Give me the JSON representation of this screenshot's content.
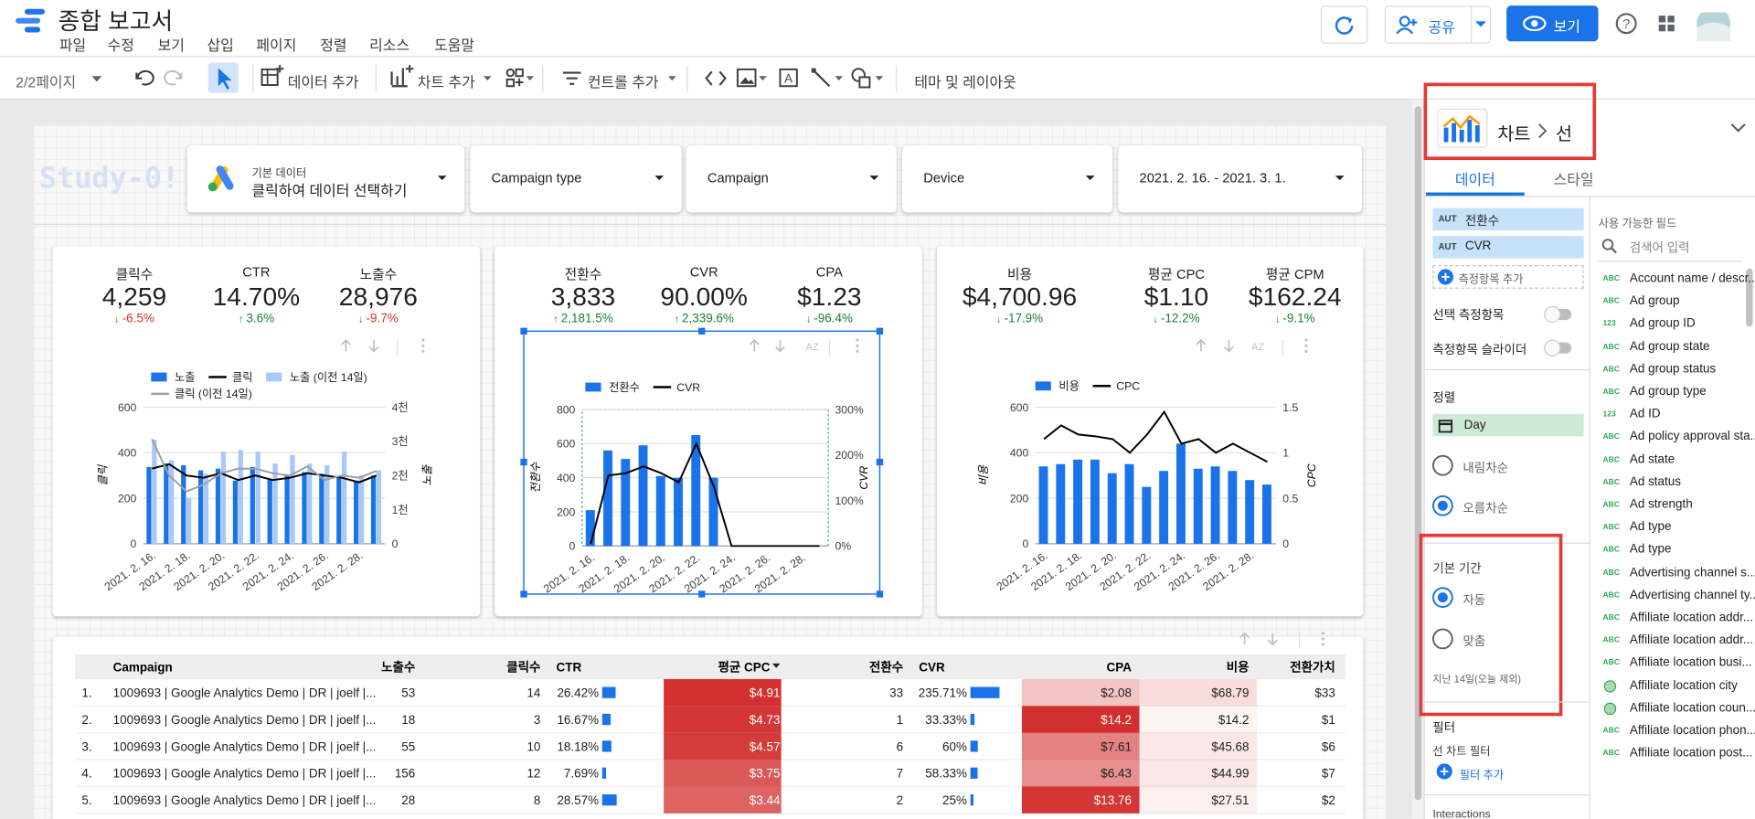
{
  "header": {
    "title": "종합 보고서",
    "menu": [
      "파일",
      "수정",
      "보기",
      "삽입",
      "페이지",
      "정렬",
      "리소스",
      "도움말"
    ],
    "share": "공유",
    "view": "보기"
  },
  "toolbar": {
    "page": "2/2페이지",
    "add_data": "데이터 추가",
    "add_chart": "차트 추가",
    "add_control": "컨트롤 추가",
    "theme": "테마 및 레이아웃"
  },
  "watermark": "Study-0!",
  "filters": {
    "source_label": "기본 데이터",
    "source": "클릭하여 데이터 선택하기",
    "controls": [
      "Campaign type",
      "Campaign",
      "Device",
      "2021. 2. 16. - 2021. 3. 1."
    ]
  },
  "scorecards": [
    [
      {
        "label": "클릭수",
        "value": "4,259",
        "change": "-6.5%",
        "color": "#d93025"
      },
      {
        "label": "CTR",
        "value": "14.70%",
        "change": "3.6%",
        "color": "#188038"
      },
      {
        "label": "노출수",
        "value": "28,976",
        "change": "-9.7%",
        "color": "#d93025"
      }
    ],
    [
      {
        "label": "전환수",
        "value": "3,833",
        "change": "2,181.5%",
        "color": "#188038"
      },
      {
        "label": "CVR",
        "value": "90.00%",
        "change": "2,339.6%",
        "color": "#188038"
      },
      {
        "label": "CPA",
        "value": "$1.23",
        "change": "-96.4%",
        "color": "#188038"
      }
    ],
    [
      {
        "label": "비용",
        "value": "$4,700.96",
        "change": "-17.9%",
        "color": "#188038"
      },
      {
        "label": "평균 CPC",
        "value": "$1.10",
        "change": "-12.2%",
        "color": "#188038"
      },
      {
        "label": "평균 CPM",
        "value": "$162.24",
        "change": "-9.1%",
        "color": "#188038"
      }
    ]
  ],
  "chart_data": [
    {
      "type": "combo",
      "categories": [
        "2021. 2. 16.",
        null,
        "2021. 2. 18.",
        null,
        "2021. 2. 20.",
        null,
        "2021. 2. 22.",
        null,
        "2021. 2. 24.",
        null,
        "2021. 2. 26.",
        null,
        "2021. 2. 28.",
        null
      ],
      "ylabel": "클릭",
      "y2label": "노출",
      "ylim": [
        0,
        600
      ],
      "yticks": [
        0,
        200,
        400,
        600
      ],
      "y2lim": [
        0,
        4000
      ],
      "y2ticks": [
        0,
        {
          "value": 1000,
          "label": "1천"
        },
        {
          "value": 2000,
          "label": "2천"
        },
        {
          "value": 3000,
          "label": "3천"
        },
        {
          "value": 4000,
          "label": "4천"
        }
      ],
      "grid": true,
      "series": [
        {
          "name": "노출",
          "type": "bar",
          "axis": "y2",
          "color": "#1a73e8",
          "values": [
            2250,
            2350,
            2300,
            2150,
            2200,
            1850,
            2250,
            1900,
            2000,
            2100,
            2050,
            1950,
            1850,
            2000
          ]
        },
        {
          "name": "클릭",
          "type": "line",
          "color": "#000000",
          "values": [
            330,
            350,
            300,
            290,
            310,
            280,
            300,
            280,
            290,
            310,
            300,
            290,
            270,
            300
          ]
        },
        {
          "name": "노출 (이전 14일)",
          "type": "bar",
          "axis": "y2",
          "color": "#a8c7fa",
          "values": [
            3050,
            2450,
            1350,
            2050,
            2700,
            2750,
            2700,
            2350,
            2600,
            2350,
            2300,
            2700,
            2000,
            2150
          ]
        },
        {
          "name": "클릭 (이전 14일)",
          "type": "line",
          "color": "#9e9e9e",
          "values": [
            460,
            300,
            230,
            260,
            310,
            330,
            330,
            310,
            300,
            340,
            280,
            300,
            290,
            320
          ]
        }
      ]
    },
    {
      "type": "combo",
      "categories": [
        "2021. 2. 16.",
        null,
        "2021. 2. 18.",
        null,
        "2021. 2. 20.",
        null,
        "2021. 2. 22.",
        null,
        "2021. 2. 24.",
        null,
        "2021. 2. 26.",
        null,
        "2021. 2. 28.",
        null
      ],
      "ylabel": "전환수",
      "y2label": "CVR",
      "ylim": [
        0,
        800
      ],
      "yticks": [
        0,
        200,
        400,
        600,
        800
      ],
      "y2lim": [
        0,
        300
      ],
      "y2ticks": [
        {
          "value": 0,
          "label": "0%"
        },
        {
          "value": 100,
          "label": "100%"
        },
        {
          "value": 200,
          "label": "200%"
        },
        {
          "value": 300,
          "label": "300%"
        }
      ],
      "grid": true,
      "series": [
        {
          "name": "전환수",
          "type": "bar",
          "color": "#1a73e8",
          "values": [
            210,
            560,
            510,
            590,
            410,
            400,
            650,
            400,
            0,
            0,
            0,
            0,
            0,
            0
          ]
        },
        {
          "name": "CVR",
          "type": "line",
          "axis": "y2",
          "color": "#000000",
          "values": [
            5,
            155,
            160,
            175,
            160,
            140,
            225,
            130,
            0,
            0,
            0,
            0,
            0,
            0
          ]
        }
      ]
    },
    {
      "type": "combo",
      "categories": [
        "2021. 2. 16.",
        null,
        "2021. 2. 18.",
        null,
        "2021. 2. 20.",
        null,
        "2021. 2. 22.",
        null,
        "2021. 2. 24.",
        null,
        "2021. 2. 26.",
        null,
        "2021. 2. 28.",
        null
      ],
      "ylabel": "비용",
      "y2label": "CPC",
      "ylim": [
        0,
        600
      ],
      "yticks": [
        0,
        200,
        400,
        600
      ],
      "y2lim": [
        0,
        1.5
      ],
      "y2ticks": [
        0,
        0.5,
        1,
        1.5
      ],
      "grid": true,
      "series": [
        {
          "name": "비용",
          "type": "bar",
          "color": "#1a73e8",
          "values": [
            340,
            350,
            370,
            370,
            310,
            350,
            250,
            320,
            440,
            330,
            340,
            320,
            280,
            260
          ]
        },
        {
          "name": "CPC",
          "type": "line",
          "axis": "y2",
          "color": "#000000",
          "values": [
            1.15,
            1.3,
            1.2,
            1.18,
            1.15,
            1.0,
            1.2,
            1.45,
            1.1,
            1.15,
            1.0,
            1.1,
            1.0,
            0.9
          ]
        }
      ]
    }
  ],
  "table": {
    "headers": [
      "Campaign",
      "노출수",
      "클릭수",
      "CTR",
      "평균 CPC",
      "전환수",
      "CVR",
      "CPA",
      "비용",
      "전환가치"
    ],
    "rows": [
      [
        "1.",
        "1009693 | Google Analytics Demo | DR | joelf |...",
        "53",
        "14",
        "26.42%",
        "$4.91",
        "33",
        "235.71%",
        "$2.08",
        "$68.79",
        "$33"
      ],
      [
        "2.",
        "1009693 | Google Analytics Demo | DR | joelf |...",
        "18",
        "3",
        "16.67%",
        "$4.73",
        "1",
        "33.33%",
        "$14.2",
        "$14.2",
        "$1"
      ],
      [
        "3.",
        "1009693 | Google Analytics Demo | DR | joelf |...",
        "55",
        "10",
        "18.18%",
        "$4.57",
        "6",
        "60%",
        "$7.61",
        "$45.68",
        "$6"
      ],
      [
        "4.",
        "1009693 | Google Analytics Demo | DR | joelf |...",
        "156",
        "12",
        "7.69%",
        "$3.75",
        "7",
        "58.33%",
        "$6.43",
        "$44.99",
        "$7"
      ],
      [
        "5.",
        "1009693 | Google Analytics Demo | DR | joelf |...",
        "28",
        "8",
        "28.57%",
        "$3.44",
        "2",
        "25%",
        "$13.76",
        "$27.51",
        "$2"
      ]
    ]
  },
  "panel": {
    "chart": "차트",
    "chart_type": "선",
    "tabs": [
      "데이터",
      "스타일"
    ],
    "metrics": [
      {
        "type": "AUT",
        "name": "전환수"
      },
      {
        "type": "AUT",
        "name": "CVR"
      }
    ],
    "add_metric": "측정항목 추가",
    "optional_metrics": "선택 측정항목",
    "metric_slider": "측정항목 슬라이더",
    "sort": "정렬",
    "sort_field": "Day",
    "sort_options": [
      "내림차순",
      "오름차순"
    ],
    "date_range": "기본 기간",
    "date_options": [
      "자동",
      "맞춤"
    ],
    "date_note": "지난 14일(오늘 제외)",
    "filter": "필터",
    "filter_label": "선 차트 필터",
    "add_filter": "필터 추가",
    "interactions": "Interactions"
  },
  "fields": {
    "title": "사용 가능한 필드",
    "search": "검색어 입력",
    "items": [
      {
        "type": "ABC",
        "name": "Account name / descr..."
      },
      {
        "type": "ABC",
        "name": "Ad group"
      },
      {
        "type": "123",
        "name": "Ad group ID"
      },
      {
        "type": "ABC",
        "name": "Ad group state"
      },
      {
        "type": "ABC",
        "name": "Ad group status"
      },
      {
        "type": "ABC",
        "name": "Ad group type"
      },
      {
        "type": "123",
        "name": "Ad ID"
      },
      {
        "type": "ABC",
        "name": "Ad policy approval sta..."
      },
      {
        "type": "ABC",
        "name": "Ad state"
      },
      {
        "type": "ABC",
        "name": "Ad status"
      },
      {
        "type": "ABC",
        "name": "Ad strength"
      },
      {
        "type": "ABC",
        "name": "Ad type"
      },
      {
        "type": "ABC",
        "name": "Ad type"
      },
      {
        "type": "ABC",
        "name": "Advertising channel s..."
      },
      {
        "type": "ABC",
        "name": "Advertising channel ty..."
      },
      {
        "type": "ABC",
        "name": "Affiliate location addr..."
      },
      {
        "type": "ABC",
        "name": "Affiliate location addr..."
      },
      {
        "type": "ABC",
        "name": "Affiliate location busi..."
      },
      {
        "name": "Affiliate location city"
      },
      {
        "name": "Affiliate location coun..."
      },
      {
        "type": "ABC",
        "name": "Affiliate location phon..."
      },
      {
        "type": "ABC",
        "name": "Affiliate location post..."
      }
    ]
  }
}
